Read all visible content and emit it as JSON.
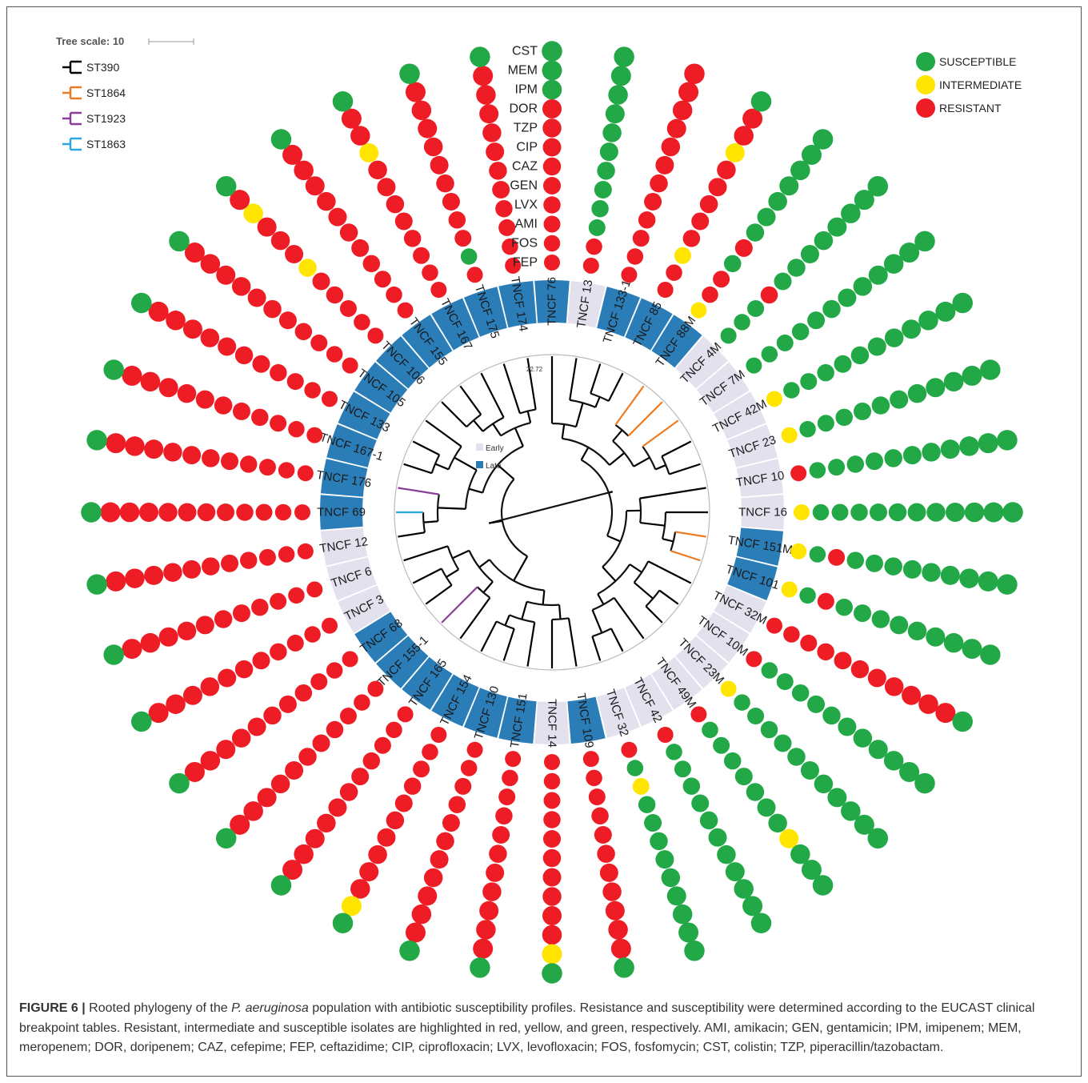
{
  "tree_scale": {
    "label": "Tree scale: 10"
  },
  "st_legend": [
    {
      "label": "ST390",
      "color": "#000000"
    },
    {
      "label": "ST1864",
      "color": "#ee7b22"
    },
    {
      "label": "ST1923",
      "color": "#8b3e97"
    },
    {
      "label": "ST1863",
      "color": "#2aa6e0"
    }
  ],
  "profile_legend": [
    {
      "key": "S",
      "label": "SUSCEPTIBLE",
      "color": "#22a846"
    },
    {
      "key": "I",
      "label": "INTERMEDIATE",
      "color": "#ffe500"
    },
    {
      "key": "R",
      "label": "RESISTANT",
      "color": "#ee1c24"
    }
  ],
  "period_legend": [
    {
      "key": "E",
      "label": "Early",
      "color": "#e4e1ee"
    },
    {
      "key": "L",
      "label": "Late",
      "color": "#2b7db8"
    }
  ],
  "branch_value": "22.72",
  "antibiotics": [
    "FEP",
    "FOS",
    "AMI",
    "LVX",
    "GEN",
    "CAZ",
    "CIP",
    "TZP",
    "DOR",
    "IPM",
    "MEM",
    "CST"
  ],
  "isolates": [
    {
      "name": "TNCF 76",
      "period": "L",
      "profile": "RRRRRRRRRSSS"
    },
    {
      "name": "TNCF 13",
      "period": "E",
      "profile": "RRSSSSSSSSSS"
    },
    {
      "name": "TNCF 133-1",
      "period": "L",
      "profile": "RRRRRRRRRRRR"
    },
    {
      "name": "TNCF 85",
      "period": "L",
      "profile": "RRIRRRRRIRRS"
    },
    {
      "name": "TNCF 88M",
      "period": "L",
      "profile": "IRRSRSSSSSSS"
    },
    {
      "name": "TNCF 4M",
      "period": "E",
      "profile": "SSSRSSSSSSSS"
    },
    {
      "name": "TNCF 7M",
      "period": "E",
      "profile": "SSSSSSSSSSSS"
    },
    {
      "name": "TNCF 42M",
      "period": "E",
      "profile": "ISSSSSSSSSSS"
    },
    {
      "name": "TNCF 23",
      "period": "E",
      "profile": "ISSSSSSSSSSS"
    },
    {
      "name": "TNCF 10",
      "period": "E",
      "profile": "RSSSSSSSSSSS"
    },
    {
      "name": "TNCF 16",
      "period": "E",
      "profile": "ISSSSSSSSSSS"
    },
    {
      "name": "TNCF 151M",
      "period": "L",
      "profile": "ISRSSSSSSSSS"
    },
    {
      "name": "TNCF 101",
      "period": "L",
      "profile": "ISRSSSSSSSSS"
    },
    {
      "name": "TNCF 32M",
      "period": "E",
      "profile": "RRRRRRRRRRRS"
    },
    {
      "name": "TNCF 10M",
      "period": "E",
      "profile": "RSSSSSSSSSSS"
    },
    {
      "name": "TNCF 23M",
      "period": "E",
      "profile": "ISSSSSSSSSSS"
    },
    {
      "name": "TNCF 49M",
      "period": "E",
      "profile": "RSSSSSSSISSS"
    },
    {
      "name": "TNCF 42",
      "period": "E",
      "profile": "RSSSSSSSSSSS"
    },
    {
      "name": "TNCF 32",
      "period": "E",
      "profile": "RSISSSSSSSSS"
    },
    {
      "name": "TNCF 109",
      "period": "L",
      "profile": "RRRRRRRRRRRS"
    },
    {
      "name": "TNCF 14",
      "period": "E",
      "profile": "RRRRRRRRRRIS"
    },
    {
      "name": "TNCF 151",
      "period": "L",
      "profile": "RRRRRRRRRRRS"
    },
    {
      "name": "TNCF 130",
      "period": "L",
      "profile": "RRRRRRRRRRRS"
    },
    {
      "name": "TNCF 154",
      "period": "L",
      "profile": "RRRRRRRRRRIS"
    },
    {
      "name": "TNCF 165",
      "period": "L",
      "profile": "RRRRRRRRRRRS"
    },
    {
      "name": "TNCF 155-1",
      "period": "L",
      "profile": "RRRRRRRRRRRS"
    },
    {
      "name": "TNCF 68",
      "period": "L",
      "profile": "RRRRRRRRRRRS"
    },
    {
      "name": "TNCF 3",
      "period": "E",
      "profile": "RRRRRRRRRRRS"
    },
    {
      "name": "TNCF 6",
      "period": "E",
      "profile": "RRRRRRRRRRRS"
    },
    {
      "name": "TNCF 12",
      "period": "E",
      "profile": "RRRRRRRRRRRS"
    },
    {
      "name": "TNCF 69",
      "period": "L",
      "profile": "RRRRRRRRRRRS"
    },
    {
      "name": "TNCF 176",
      "period": "L",
      "profile": "RRRRRRRRRRRS"
    },
    {
      "name": "TNCF 167-1",
      "period": "L",
      "profile": "RRRRRRRRRRRS"
    },
    {
      "name": "TNCF 133",
      "period": "L",
      "profile": "RRRRRRRRRRRS"
    },
    {
      "name": "TNCF 105",
      "period": "L",
      "profile": "RRRRRRRRRRRS"
    },
    {
      "name": "TNCF 106",
      "period": "L",
      "profile": "RRRRRIRRRIRS"
    },
    {
      "name": "TNCF 155",
      "period": "L",
      "profile": "RRRRRRRRRRRS"
    },
    {
      "name": "TNCF 167",
      "period": "L",
      "profile": "RRRRRRRRIRRS"
    },
    {
      "name": "TNCF 175",
      "period": "L",
      "profile": "RSRRRRRRRRRS"
    },
    {
      "name": "TNCF 174",
      "period": "L",
      "profile": "RRRRRRRRRRRS"
    }
  ],
  "caption": {
    "fig_num": "FIGURE 6 |",
    "pre": " Rooted phylogeny of the ",
    "species": "P. aeruginosa",
    "post": " population with antibiotic susceptibility profiles. Resistance and susceptibility were determined according to the EUCAST clinical breakpoint tables. Resistant, intermediate and susceptible isolates are highlighted in red, yellow, and green, respectively. AMI, amikacin; GEN, gentamicin; IPM, imipenem; MEM, meropenem; DOR, doripenem; CAZ, cefepime; FEP, ceftazidime; CIP, ciprofloxacin; LVX, levofloxacin; FOS, fosfomycin; CST, colistin; TZP, piperacillin/tazobactam."
  }
}
